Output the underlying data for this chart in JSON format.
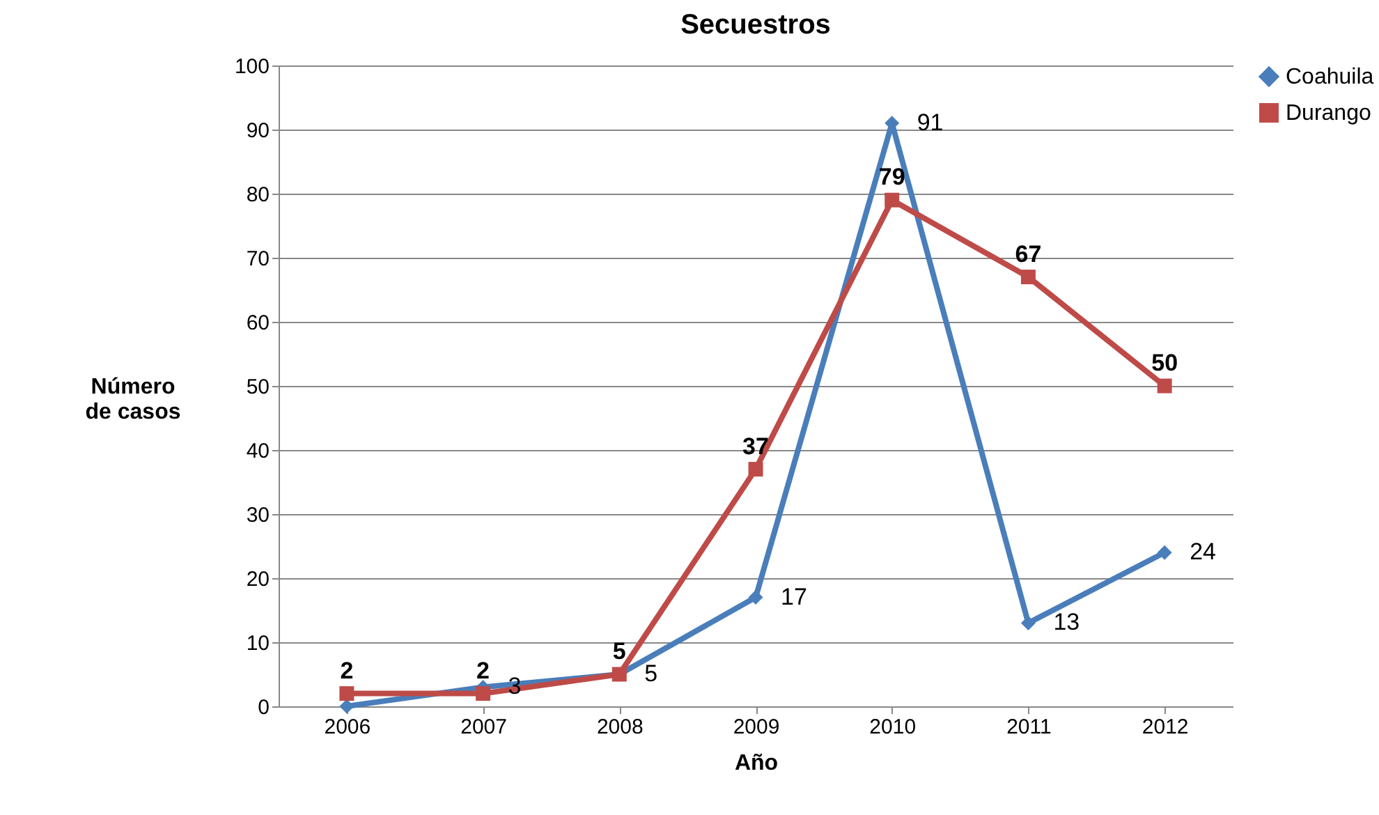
{
  "chart_data": {
    "type": "line",
    "title": "Secuestros",
    "xlabel": "Año",
    "ylabel": "Número\nde casos",
    "categories": [
      "2006",
      "2007",
      "2008",
      "2009",
      "2010",
      "2011",
      "2012"
    ],
    "series": [
      {
        "name": "Coahuila",
        "color": "#4a7ebb",
        "marker": "diamond",
        "values": [
          0,
          3,
          5,
          17,
          91,
          13,
          24
        ],
        "value_labels": [
          null,
          "3",
          "5",
          "17",
          "91",
          "13",
          "24"
        ]
      },
      {
        "name": "Durango",
        "color": "#be4b48",
        "marker": "square",
        "values": [
          2,
          2,
          5,
          37,
          79,
          67,
          50
        ],
        "value_labels": [
          "2",
          "2",
          "5",
          "37",
          "79",
          "67",
          "50"
        ]
      }
    ],
    "ylim": [
      0,
      100
    ],
    "yticks": [
      0,
      10,
      20,
      30,
      40,
      50,
      60,
      70,
      80,
      90,
      100
    ],
    "grid": "y",
    "legend": "right"
  }
}
